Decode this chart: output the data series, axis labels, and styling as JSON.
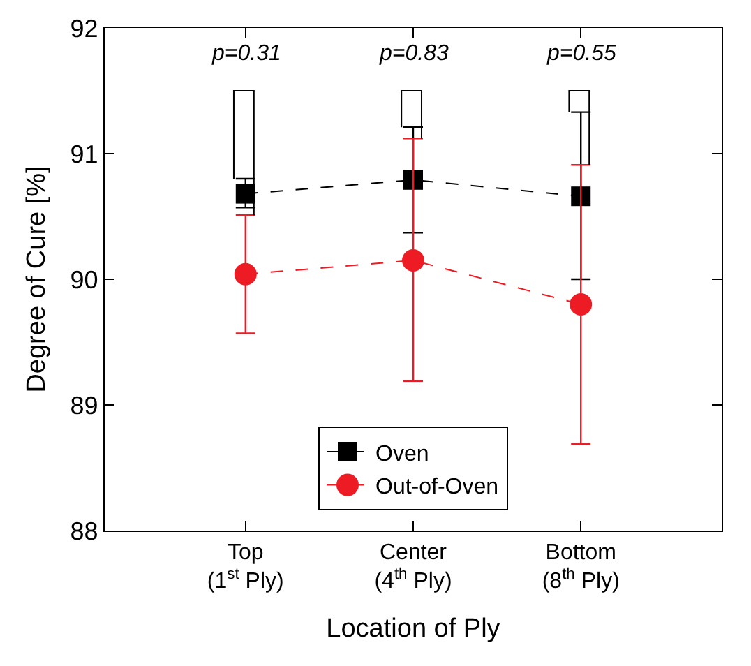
{
  "chart_data": {
    "type": "line",
    "xlabel": "Location of Ply",
    "ylabel": "Degree of Cure [%]",
    "categories": [
      "Top\n(1$^{st}$ Ply)",
      "Center\n(4$^{th}$ Ply)",
      "Bottom\n(8$^{th}$ Ply)"
    ],
    "series": [
      {
        "name": "Oven",
        "color": "#000000",
        "marker": "square",
        "values": [
          90.68,
          90.79,
          90.66
        ],
        "errors": [
          [
            90.57,
            90.8
          ],
          [
            90.37,
            91.21
          ],
          [
            90.0,
            91.33
          ]
        ]
      },
      {
        "name": "Out-of-Oven",
        "color": "#ed1c24",
        "marker": "circle",
        "values": [
          90.04,
          90.15,
          89.8
        ],
        "errors": [
          [
            89.57,
            90.51
          ],
          [
            89.19,
            91.12
          ],
          [
            88.69,
            90.91
          ]
        ]
      }
    ],
    "ylim": [
      88,
      92
    ],
    "yticks": [
      88,
      89,
      90,
      91,
      92
    ],
    "grid": false,
    "legend": "bottom",
    "line_style": "dashed",
    "annotations": [
      "p=0.31",
      "p=0.83",
      "p=0.55"
    ]
  }
}
